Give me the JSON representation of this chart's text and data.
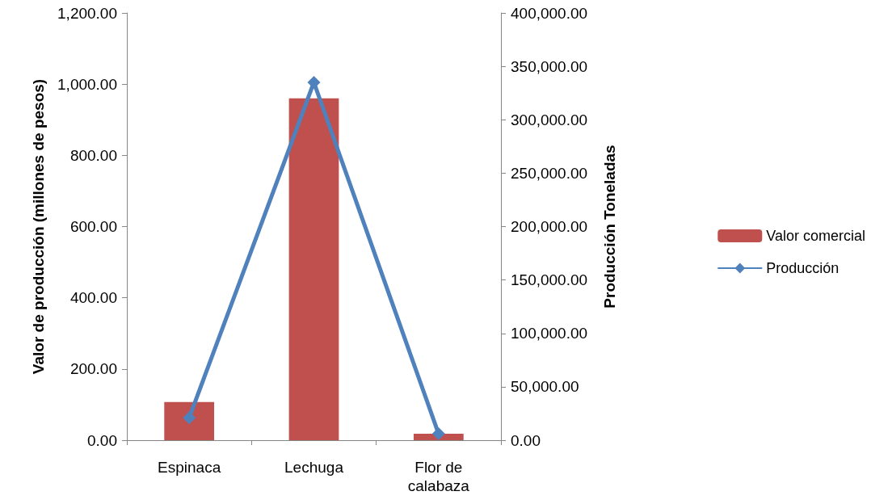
{
  "chart_data": {
    "type": "bar",
    "categories": [
      "Espinaca",
      "Lechuga",
      "Flor de\ncalabaza"
    ],
    "ylabel": "Valor de producción (millones de pesos)",
    "y2label": "Producción Toneladas",
    "series": [
      {
        "name": "Valor comercial",
        "color": "#c0504d",
        "values": [
          107,
          960,
          18
        ]
      },
      {
        "name": "Producción",
        "type": "line",
        "axis": "y2",
        "color": "#4f81bd",
        "marker": "diamond",
        "values": [
          21000,
          335000,
          6000
        ]
      }
    ],
    "ylim": [
      0,
      1200
    ],
    "yticks": [
      {
        "value": 0,
        "label": "0.00"
      },
      {
        "value": 200,
        "label": "200.00"
      },
      {
        "value": 400,
        "label": "400.00"
      },
      {
        "value": 600,
        "label": "600.00"
      },
      {
        "value": 800,
        "label": "800.00"
      },
      {
        "value": 1000,
        "label": "1,000.00"
      },
      {
        "value": 1200,
        "label": "1,200.00"
      }
    ],
    "y2lim": [
      0,
      400000
    ],
    "y2ticks": [
      {
        "value": 0,
        "label": "0.00"
      },
      {
        "value": 50000,
        "label": "50,000.00"
      },
      {
        "value": 100000,
        "label": "100,000.00"
      },
      {
        "value": 150000,
        "label": "150,000.00"
      },
      {
        "value": 200000,
        "label": "200,000.00"
      },
      {
        "value": 250000,
        "label": "250,000.00"
      },
      {
        "value": 300000,
        "label": "300,000.00"
      },
      {
        "value": 350000,
        "label": "350,000.00"
      },
      {
        "value": 400000,
        "label": "400,000.00"
      }
    ],
    "grid": false,
    "legend": "right"
  }
}
